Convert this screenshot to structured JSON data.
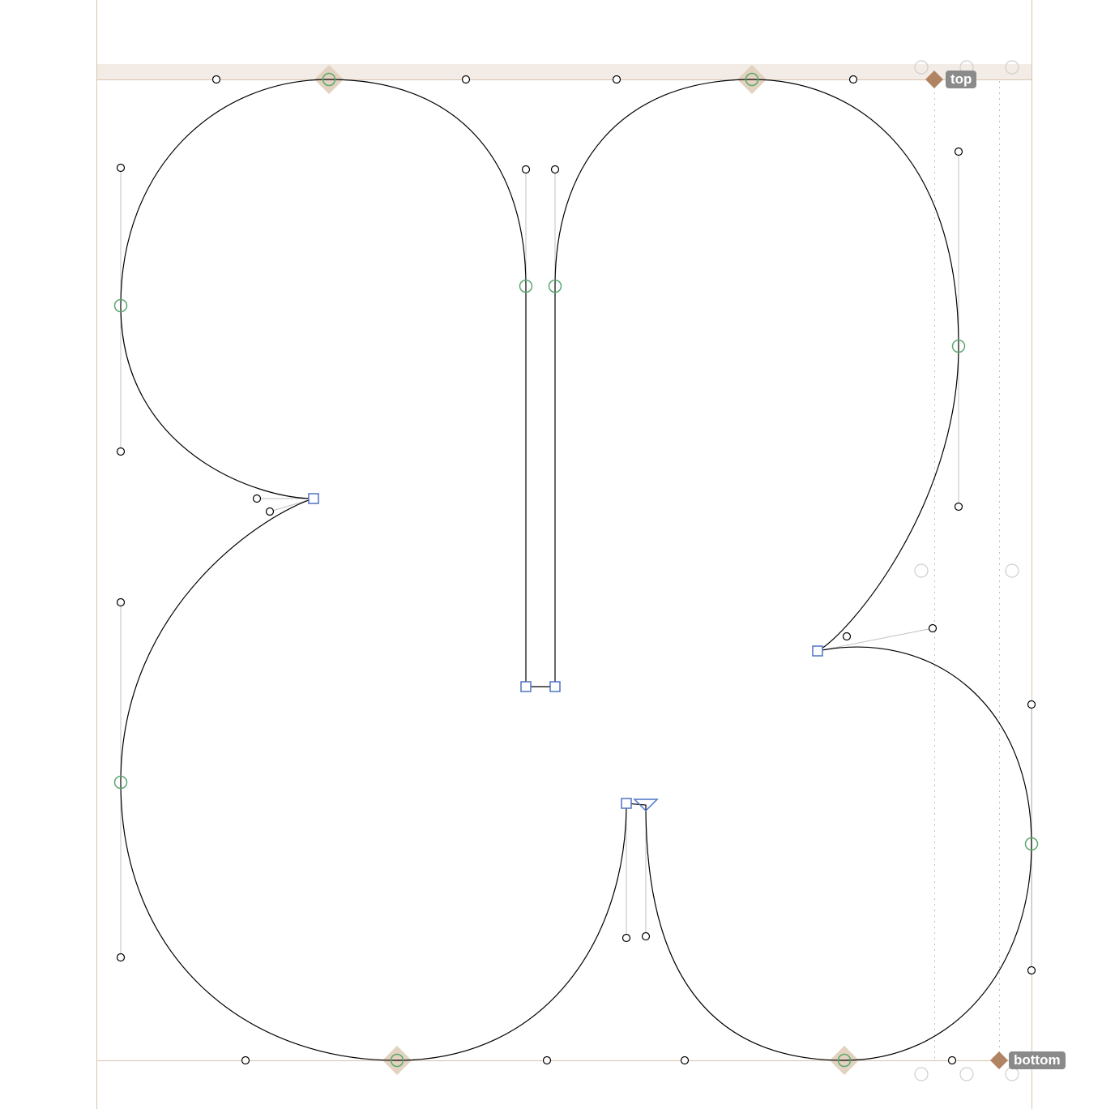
{
  "metrics": {
    "top_label": "top",
    "bottom_label": "bottom"
  },
  "colors": {
    "canvas_background": "#ffffff",
    "outline_stroke": "#000000",
    "metric_line": "#d9c4ae",
    "metric_zone_fill": "#f3ebe5",
    "metric_marker": "#b08363",
    "badge_background": "#8a8a8a",
    "smooth_node": "#5aa970",
    "extremum_highlight": "#e2d2bf",
    "corner_node": "#4d74c4",
    "handle_line": "#c0c0c0",
    "handle_point": "#000000",
    "ghost_point": "#cfcfcf"
  },
  "icons": {
    "smooth_node": "circle-node-icon",
    "corner_node": "square-node-icon",
    "start_node": "triangle-start-icon",
    "handle": "handle-point-icon",
    "metric_marker": "diamond-marker-icon"
  }
}
